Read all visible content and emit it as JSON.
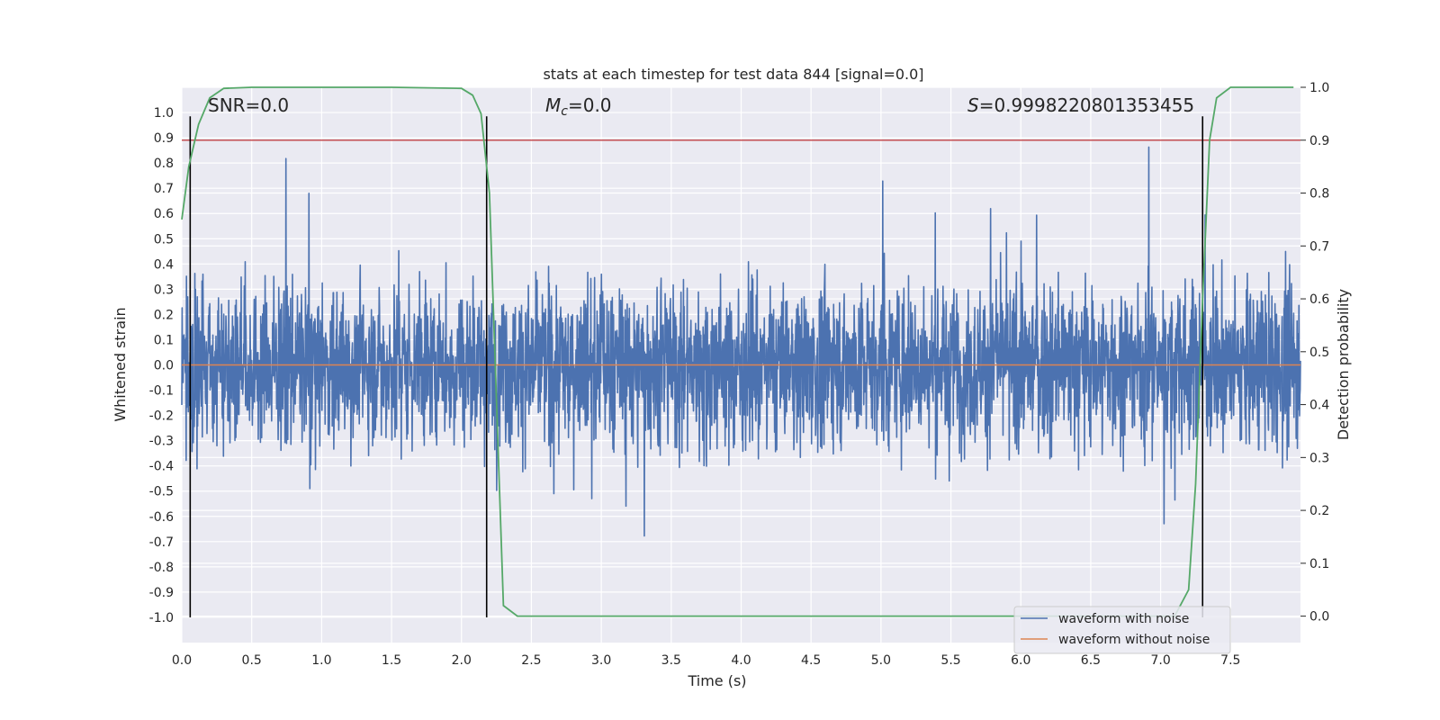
{
  "chart_data": {
    "type": "line",
    "title": "stats at each timestep for test data 844 [signal=0.0]",
    "xlabel": "Time (s)",
    "ylabel": "Whitened strain",
    "y2label": "Detection probability",
    "xlim": [
      0.0,
      8.0
    ],
    "ylim": [
      -1.1,
      1.1
    ],
    "y2lim": [
      -0.05,
      1.0
    ],
    "xticks": [
      "0.0",
      "0.5",
      "1.0",
      "1.5",
      "2.0",
      "2.5",
      "3.0",
      "3.5",
      "4.0",
      "4.5",
      "5.0",
      "5.5",
      "6.0",
      "6.5",
      "7.0",
      "7.5"
    ],
    "yticks": [
      "1.0",
      "0.9",
      "0.8",
      "0.7",
      "0.6",
      "0.5",
      "0.4",
      "0.3",
      "0.2",
      "0.1",
      "0.0",
      "-0.1",
      "-0.2",
      "-0.3",
      "-0.4",
      "-0.5",
      "-0.6",
      "-0.7",
      "-0.8",
      "-0.9",
      "-1.0"
    ],
    "y2ticks": [
      "1.0",
      "0.9",
      "0.8",
      "0.7",
      "0.6",
      "0.5",
      "0.4",
      "0.3",
      "0.2",
      "0.1",
      "0.0"
    ],
    "annotations": {
      "snr": "SNR=0.0",
      "mc_symbol": "M",
      "mc_sub": "c",
      "mc_value": "=0.0",
      "s_symbol": "S",
      "s_value": "=0.9998220801353455"
    },
    "legend": {
      "position": "lower-right",
      "entries": [
        "waveform with noise",
        "waveform without noise"
      ]
    },
    "series": [
      {
        "name": "waveform with noise",
        "kind": "noise",
        "envelope": 0.5,
        "peak": 0.95
      },
      {
        "name": "waveform without noise",
        "kind": "constant",
        "value": 0.0
      },
      {
        "name": "detection probability",
        "axis": "y2",
        "x": [
          0.0,
          0.05,
          0.12,
          0.2,
          0.3,
          0.5,
          1.0,
          1.5,
          2.0,
          2.08,
          2.14,
          2.2,
          2.3,
          2.4,
          2.5,
          3.0,
          4.0,
          5.0,
          6.0,
          7.0,
          7.1,
          7.2,
          7.25,
          7.3,
          7.35,
          7.4,
          7.5,
          7.95
        ],
        "values": [
          0.75,
          0.85,
          0.93,
          0.98,
          0.998,
          1.0,
          1.0,
          1.0,
          0.998,
          0.985,
          0.95,
          0.8,
          0.02,
          0.0,
          0.0,
          0.0,
          0.0,
          0.0,
          0.0,
          0.0,
          0.0,
          0.05,
          0.25,
          0.6,
          0.9,
          0.98,
          1.0,
          1.0
        ]
      },
      {
        "name": "threshold",
        "axis": "y2",
        "kind": "hline",
        "value": 0.9
      }
    ],
    "vlines": [
      0.06,
      2.18,
      7.3
    ],
    "vline_range": [
      -1.0,
      0.985
    ],
    "colors": {
      "background": "#eaeaf2",
      "grid": "#ffffff",
      "noise": "#4c72b0",
      "clean": "#dd8452",
      "probability": "#55a868",
      "threshold": "#c44e52",
      "vline": "#000000"
    }
  }
}
